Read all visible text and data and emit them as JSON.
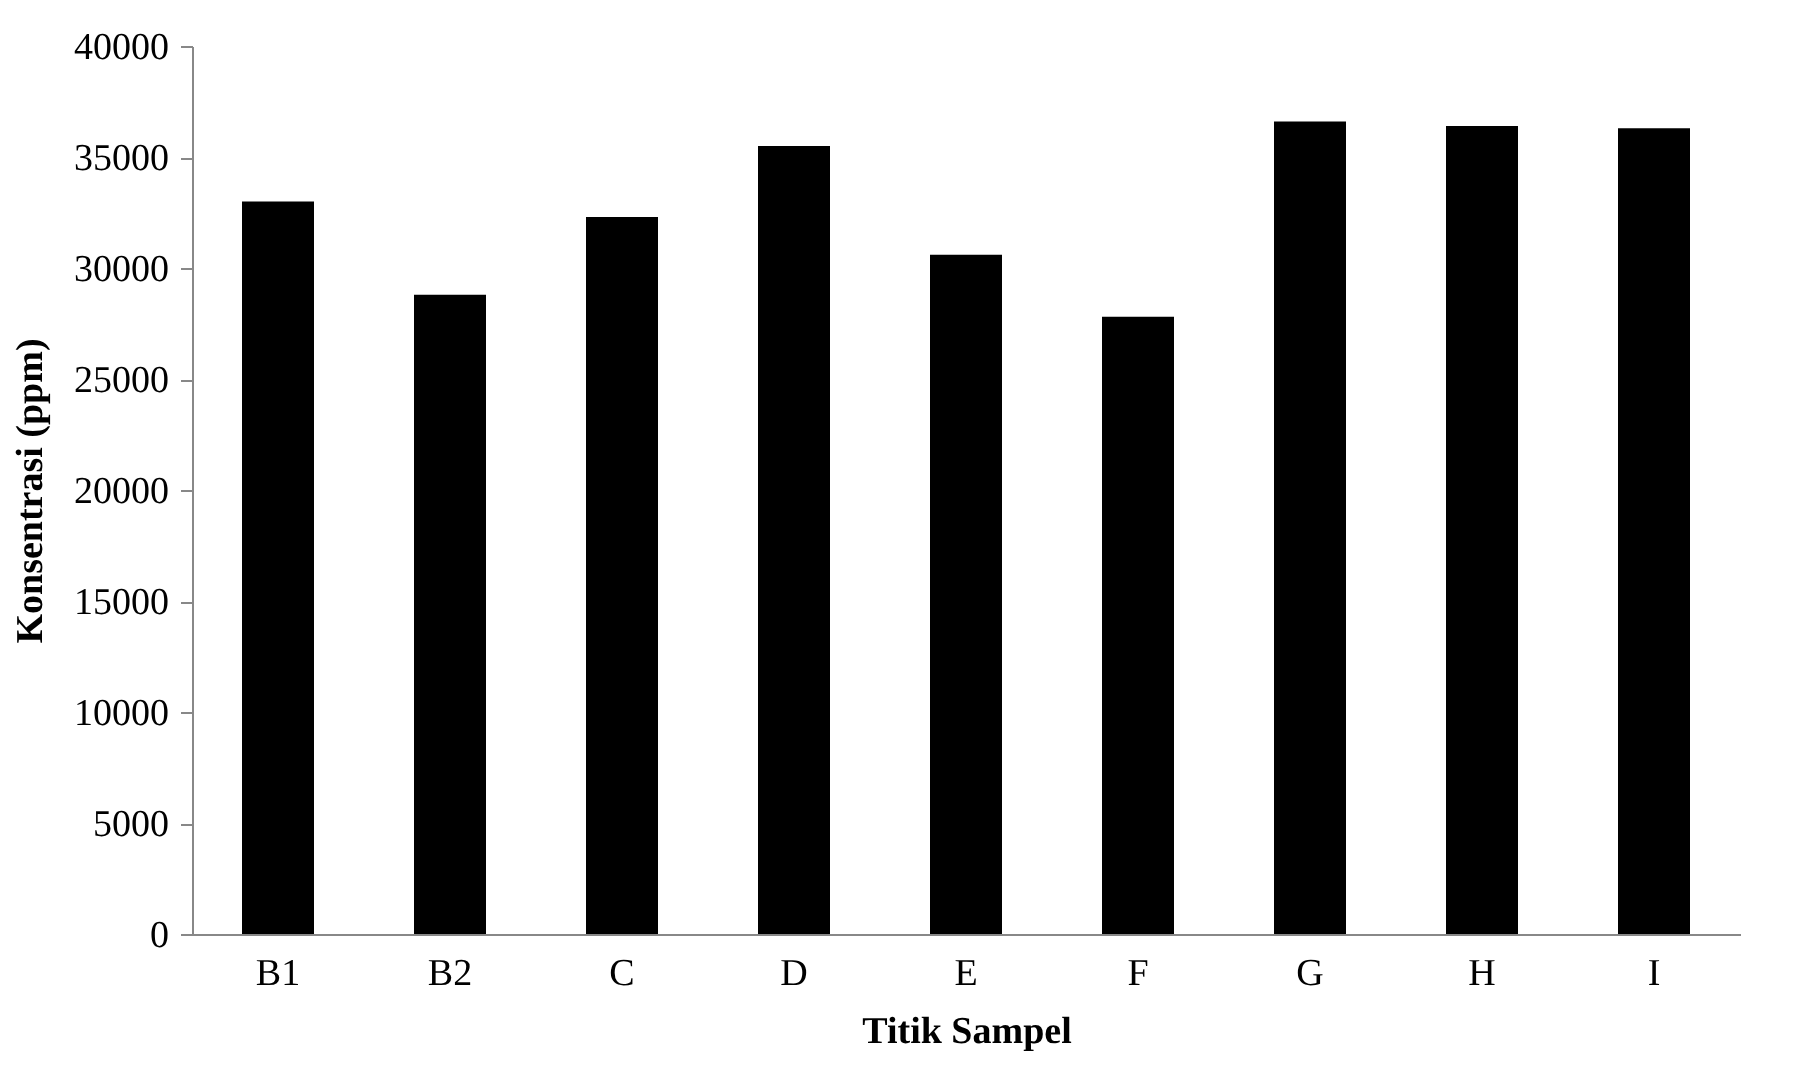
{
  "chart_data": {
    "type": "bar",
    "xlabel": "Titik Sampel",
    "ylabel": "Konsentrasi (ppm)",
    "categories": [
      "B1",
      "B2",
      "C",
      "D",
      "E",
      "F",
      "G",
      "H",
      "I"
    ],
    "values": [
      33000,
      28800,
      32300,
      35500,
      30600,
      27800,
      36600,
      36400,
      36300
    ],
    "color": "#000000",
    "ylim": [
      0,
      40000
    ],
    "yticks": [
      0,
      5000,
      10000,
      15000,
      20000,
      25000,
      30000,
      35000,
      40000
    ],
    "grid": false
  }
}
